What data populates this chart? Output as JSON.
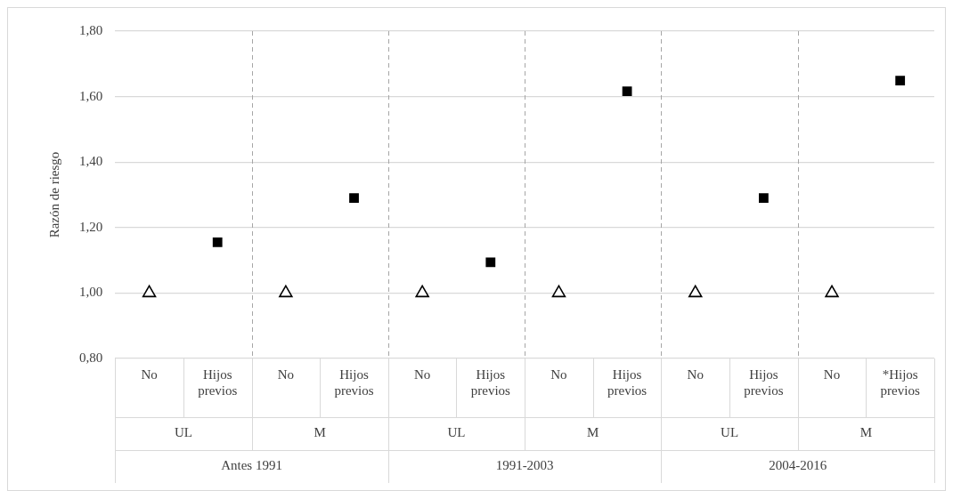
{
  "chart_data": {
    "type": "scatter",
    "ylabel": "Razón de riesgo",
    "categories": [
      "No",
      "Hijos previos",
      "No",
      "Hijos previos",
      "No",
      "Hijos previos",
      "No",
      "Hijos previos",
      "No",
      "Hijos previos",
      "No",
      "*Hijos previos"
    ],
    "series": [
      {
        "marker": "triangle",
        "color": "#000000",
        "values": [
          1.0,
          null,
          1.0,
          null,
          1.0,
          null,
          1.0,
          null,
          1.0,
          null,
          1.0,
          null
        ]
      },
      {
        "marker": "square",
        "color": "#000000",
        "values": [
          null,
          1.155,
          null,
          1.29,
          null,
          1.094,
          null,
          1.616,
          null,
          1.29,
          null,
          1.649
        ]
      }
    ],
    "ylim": [
      0.8,
      1.8
    ],
    "yticks": [
      {
        "value": 0.8,
        "label": "0,80"
      },
      {
        "value": 1.0,
        "label": "1,00"
      },
      {
        "value": 1.2,
        "label": "1,20"
      },
      {
        "value": 1.4,
        "label": "1,40"
      },
      {
        "value": 1.6,
        "label": "1,60"
      },
      {
        "value": 1.8,
        "label": "1,80"
      }
    ],
    "grid": "y",
    "legend": false,
    "annotations": [
      "UL",
      "M",
      "UL",
      "M",
      "UL",
      "M",
      "Antes 1991",
      "1991-2003",
      "2004-2016"
    ]
  }
}
